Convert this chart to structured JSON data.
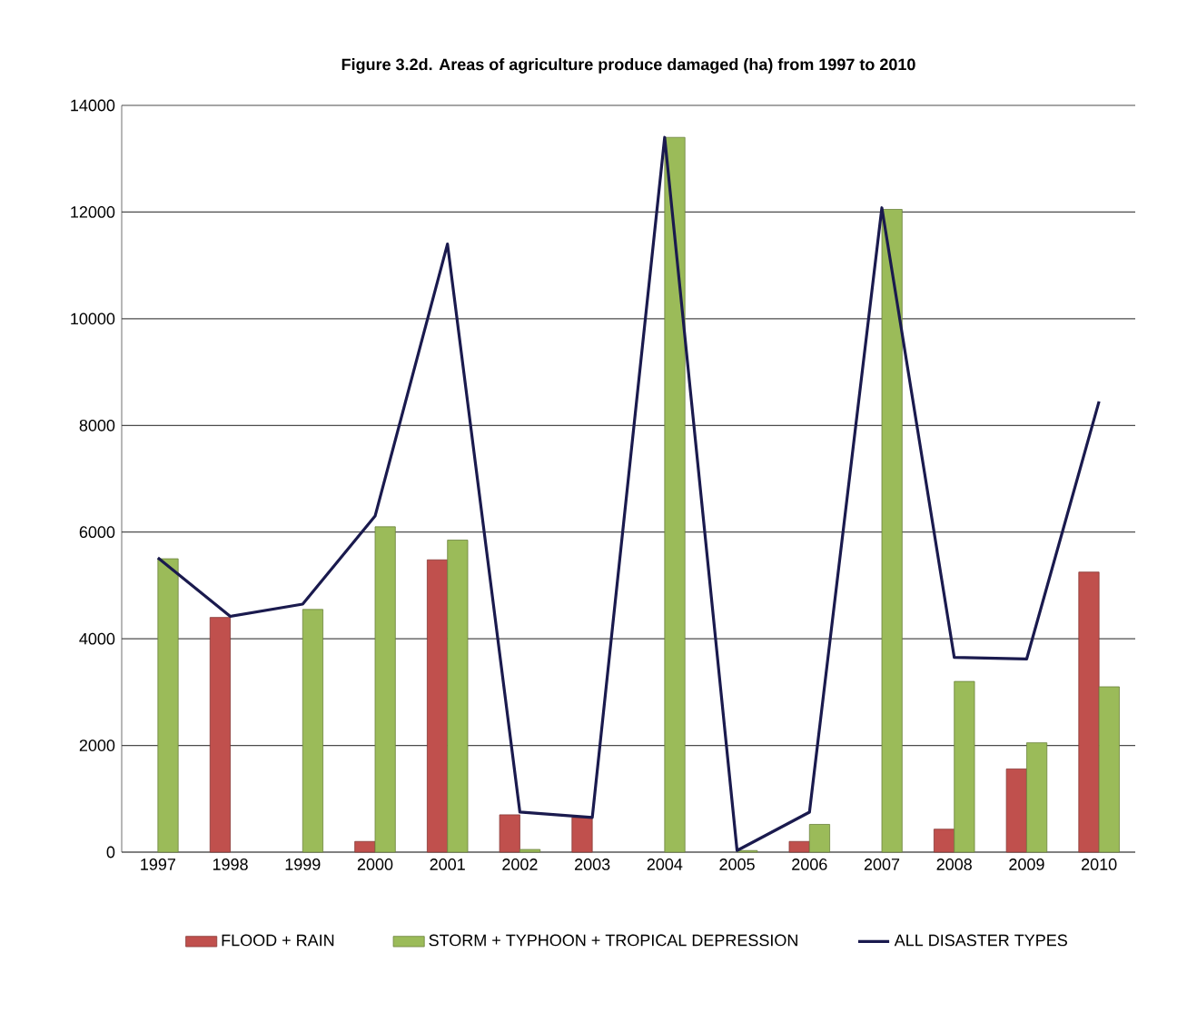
{
  "chart_data": {
    "type": "bar",
    "title": "Figure 3.2d. Areas of agriculture produce damaged (ha) from 1997 to 2010",
    "categories": [
      "1997",
      "1998",
      "1999",
      "2000",
      "2001",
      "2002",
      "2003",
      "2004",
      "2005",
      "2006",
      "2007",
      "2008",
      "2009",
      "2010"
    ],
    "series": [
      {
        "name": "FLOOD + RAIN",
        "color": "#c0504d",
        "values": [
          null,
          4400,
          null,
          200,
          5480,
          700,
          650,
          null,
          null,
          200,
          null,
          430,
          1560,
          5250
        ]
      },
      {
        "name": "STORM + TYPHOON + TROPICAL DEPRESSION",
        "color": "#9bbb59",
        "values": [
          5500,
          null,
          4550,
          6100,
          5850,
          50,
          null,
          13400,
          30,
          520,
          12050,
          3200,
          2050,
          3100
        ]
      },
      {
        "name": "ALL DISASTER TYPES",
        "type": "line",
        "color": "#1a1a4e",
        "values": [
          5520,
          4420,
          4650,
          6300,
          11400,
          750,
          650,
          13400,
          30,
          750,
          12080,
          3650,
          3620,
          8450
        ]
      }
    ],
    "ylim": [
      0,
      14000
    ],
    "yticks": [
      0,
      2000,
      4000,
      6000,
      8000,
      10000,
      12000,
      14000
    ],
    "grid": "y",
    "legend": "bottom"
  }
}
